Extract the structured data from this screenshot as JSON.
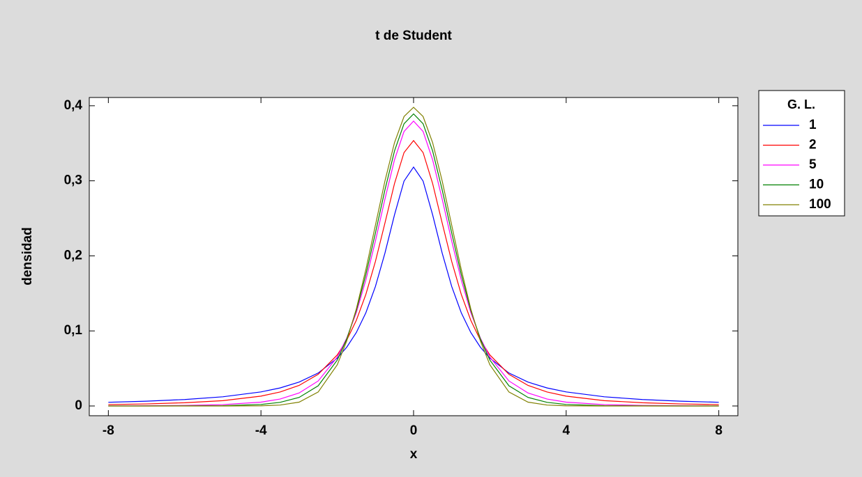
{
  "chart_data": {
    "type": "line",
    "title": "t de Student",
    "x_label": "x",
    "y_label": "densidad",
    "x": [
      -8,
      -7,
      -6,
      -5,
      -4,
      -3.5,
      -3,
      -2.5,
      -2,
      -1.75,
      -1.5,
      -1.25,
      -1,
      -0.75,
      -0.5,
      -0.25,
      0,
      0.25,
      0.5,
      0.75,
      1,
      1.25,
      1.5,
      1.75,
      2,
      2.5,
      3,
      3.5,
      4,
      5,
      6,
      7,
      8
    ],
    "series": [
      {
        "name": "1",
        "color": "#0000ff",
        "values": [
          0.0049,
          0.0064,
          0.0086,
          0.0122,
          0.0187,
          0.024,
          0.0318,
          0.0439,
          0.0637,
          0.0784,
          0.0979,
          0.1242,
          0.1592,
          0.2037,
          0.2546,
          0.2996,
          0.3183,
          0.2996,
          0.2546,
          0.2037,
          0.1592,
          0.1242,
          0.0979,
          0.0784,
          0.0637,
          0.0439,
          0.0318,
          0.024,
          0.0187,
          0.0122,
          0.0086,
          0.0064,
          0.0049
        ]
      },
      {
        "name": "2",
        "color": "#ff0000",
        "values": [
          0.0019,
          0.0027,
          0.0043,
          0.0071,
          0.0131,
          0.0186,
          0.0274,
          0.0422,
          0.068,
          0.0878,
          0.1141,
          0.1487,
          0.1925,
          0.2438,
          0.2963,
          0.3376,
          0.3536,
          0.3376,
          0.2963,
          0.2438,
          0.1925,
          0.1487,
          0.1141,
          0.0878,
          0.068,
          0.0422,
          0.0274,
          0.0186,
          0.0131,
          0.0071,
          0.0043,
          0.0027,
          0.0019
        ]
      },
      {
        "name": "5",
        "color": "#ff00ff",
        "values": [
          0.0001,
          0.0003,
          0.0007,
          0.0018,
          0.0051,
          0.0092,
          0.0173,
          0.0333,
          0.0651,
          0.0905,
          0.1245,
          0.1679,
          0.2197,
          0.2757,
          0.3279,
          0.3657,
          0.3796,
          0.3657,
          0.3279,
          0.2757,
          0.2197,
          0.1679,
          0.1245,
          0.0905,
          0.0651,
          0.0333,
          0.0173,
          0.0092,
          0.0051,
          0.0018,
          0.0007,
          0.0003,
          0.0001
        ]
      },
      {
        "name": "10",
        "color": "#008000",
        "values": [
          0.0,
          0.0,
          0.0001,
          0.0004,
          0.002,
          0.0048,
          0.0114,
          0.0269,
          0.0611,
          0.0895,
          0.1274,
          0.1751,
          0.2304,
          0.288,
          0.3397,
          0.376,
          0.3891,
          0.376,
          0.3397,
          0.288,
          0.2304,
          0.1751,
          0.1274,
          0.0895,
          0.0611,
          0.0269,
          0.0114,
          0.0048,
          0.002,
          0.0004,
          0.0001,
          0.0,
          0.0
        ]
      },
      {
        "name": "100",
        "color": "#808000",
        "values": [
          0.0,
          0.0,
          0.0,
          0.0,
          0.0002,
          0.0012,
          0.0051,
          0.0186,
          0.0549,
          0.0868,
          0.1294,
          0.1819,
          0.2408,
          0.2998,
          0.3508,
          0.3856,
          0.3979,
          0.3856,
          0.3508,
          0.2998,
          0.2408,
          0.1819,
          0.1294,
          0.0868,
          0.0549,
          0.0186,
          0.0051,
          0.0012,
          0.0002,
          0.0,
          0.0,
          0.0,
          0.0
        ]
      }
    ],
    "legend_title": "G. L.",
    "legend": "right",
    "xlim": [
      -8.5,
      8.5
    ],
    "xticks": [
      -8,
      -4,
      0,
      4,
      8
    ],
    "ylim": [
      -0.013,
      0.411
    ],
    "yticks": [
      0,
      {
        "value": 0.1,
        "label": "0,1"
      },
      {
        "value": 0.2,
        "label": "0,2"
      },
      {
        "value": 0.3,
        "label": "0,3"
      },
      {
        "value": 0.4,
        "label": "0,4"
      }
    ]
  }
}
